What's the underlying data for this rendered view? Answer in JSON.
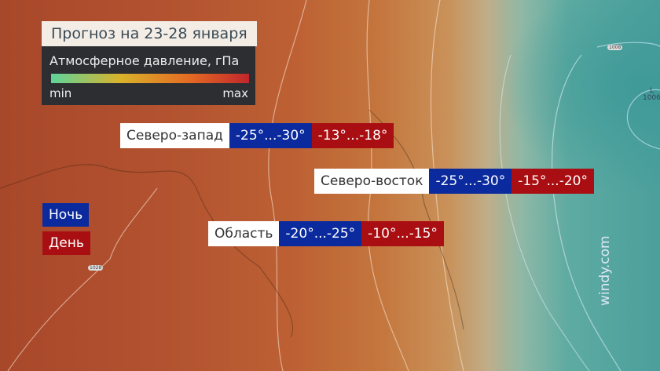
{
  "title": "Прогноз на 23-28 января",
  "legend": {
    "title": "Атмосферное давление, гПа",
    "min": "min",
    "max": "max",
    "colors": [
      "#5ed49b",
      "#d9b22a",
      "#e46a24",
      "#c0262b"
    ]
  },
  "regions": [
    {
      "name": "Северо-запад",
      "night": "-25°...-30°",
      "day": "-13°...-18°"
    },
    {
      "name": "Северо-восток",
      "night": "-25°...-30°",
      "day": "-15°...-20°"
    },
    {
      "name": "Область",
      "night": "-20°...-25°",
      "day": "-10°...-15°"
    }
  ],
  "key": {
    "night": "Ночь",
    "day": "День",
    "night_color": "#0a2a9e",
    "day_color": "#a90f12"
  },
  "map": {
    "isobars": [
      "1008",
      "1028"
    ],
    "low": {
      "letter": "L",
      "value": "1006"
    }
  },
  "watermark": "windy.com"
}
